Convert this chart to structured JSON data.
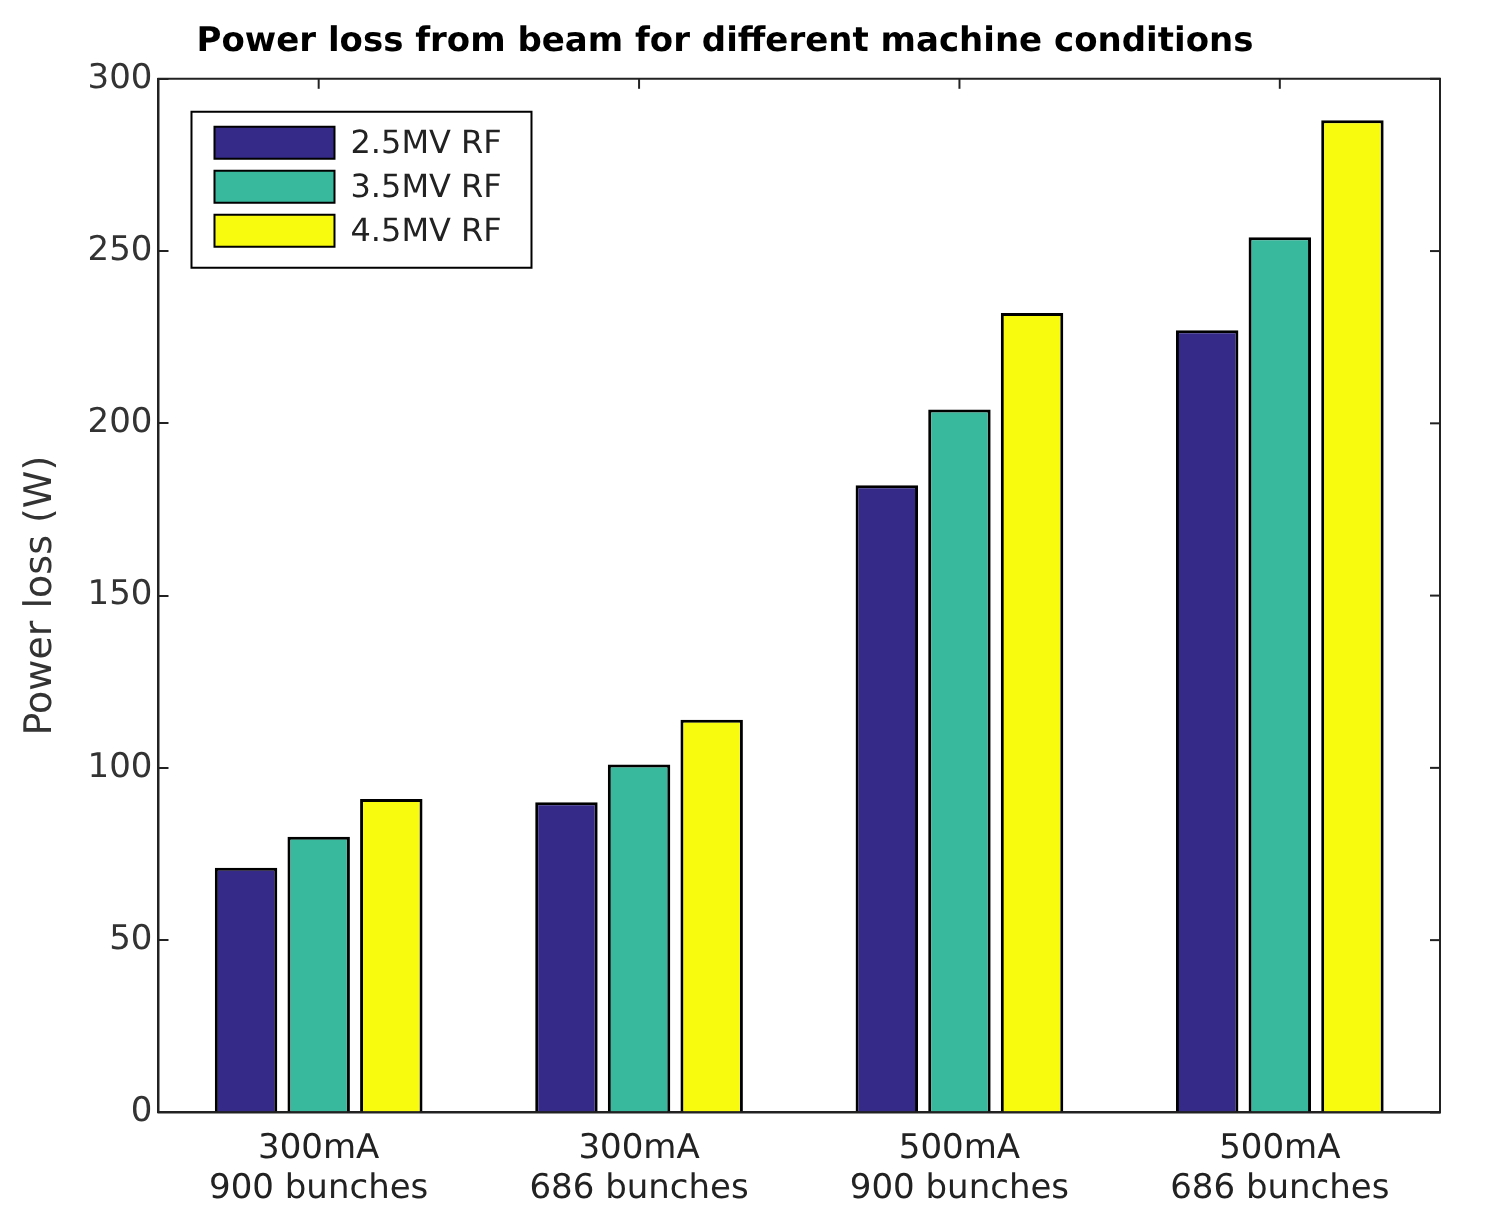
{
  "chart_data": {
    "type": "bar",
    "title": "Power loss from beam for different machine conditions",
    "ylabel": "Power loss (W)",
    "categories": [
      "300mA\n900 bunches",
      "300mA\n686 bunches",
      "500mA\n900 bunches",
      "500mA\n686 bunches"
    ],
    "series": [
      {
        "name": "2.5MV RF",
        "color": "#352a87",
        "values": [
          71,
          90,
          182,
          227
        ]
      },
      {
        "name": "3.5MV RF",
        "color": "#38b99e",
        "values": [
          80,
          101,
          204,
          254
        ]
      },
      {
        "name": "4.5MV RF",
        "color": "#f9fb0e",
        "values": [
          91,
          114,
          232,
          288
        ]
      }
    ],
    "ylim": [
      0,
      300
    ],
    "yticks": [
      0,
      50,
      100,
      150,
      200,
      250,
      300
    ],
    "grid": false,
    "legend": "top left"
  }
}
